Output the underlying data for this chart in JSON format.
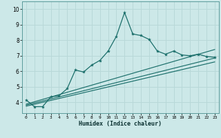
{
  "xlabel": "Humidex (Indice chaleur)",
  "xlim": [
    -0.5,
    23.5
  ],
  "ylim": [
    3.3,
    10.5
  ],
  "yticks": [
    4,
    5,
    6,
    7,
    8,
    9,
    10
  ],
  "xticks": [
    0,
    1,
    2,
    3,
    4,
    5,
    6,
    7,
    8,
    9,
    10,
    11,
    12,
    13,
    14,
    15,
    16,
    17,
    18,
    19,
    20,
    21,
    22,
    23
  ],
  "bg_color": "#cce8e8",
  "grid_color": "#b8d8d8",
  "line_color": "#1a6e6a",
  "line_main_x": [
    0,
    1,
    2,
    3,
    4,
    5,
    6,
    7,
    8,
    9,
    10,
    11,
    12,
    13,
    14,
    15,
    16,
    17,
    18,
    19,
    20,
    21,
    22,
    23
  ],
  "line_main_y": [
    4.15,
    3.72,
    3.72,
    4.35,
    4.42,
    4.88,
    6.08,
    5.95,
    6.4,
    6.7,
    7.3,
    8.25,
    9.78,
    8.4,
    8.3,
    8.05,
    7.3,
    7.1,
    7.3,
    7.05,
    7.0,
    7.1,
    6.95,
    6.9
  ],
  "line2_x": [
    0,
    23
  ],
  "line2_y": [
    3.75,
    6.6
  ],
  "line3_x": [
    0,
    23
  ],
  "line3_y": [
    3.82,
    6.85
  ],
  "line4_x": [
    0,
    23
  ],
  "line4_y": [
    3.88,
    7.4
  ]
}
